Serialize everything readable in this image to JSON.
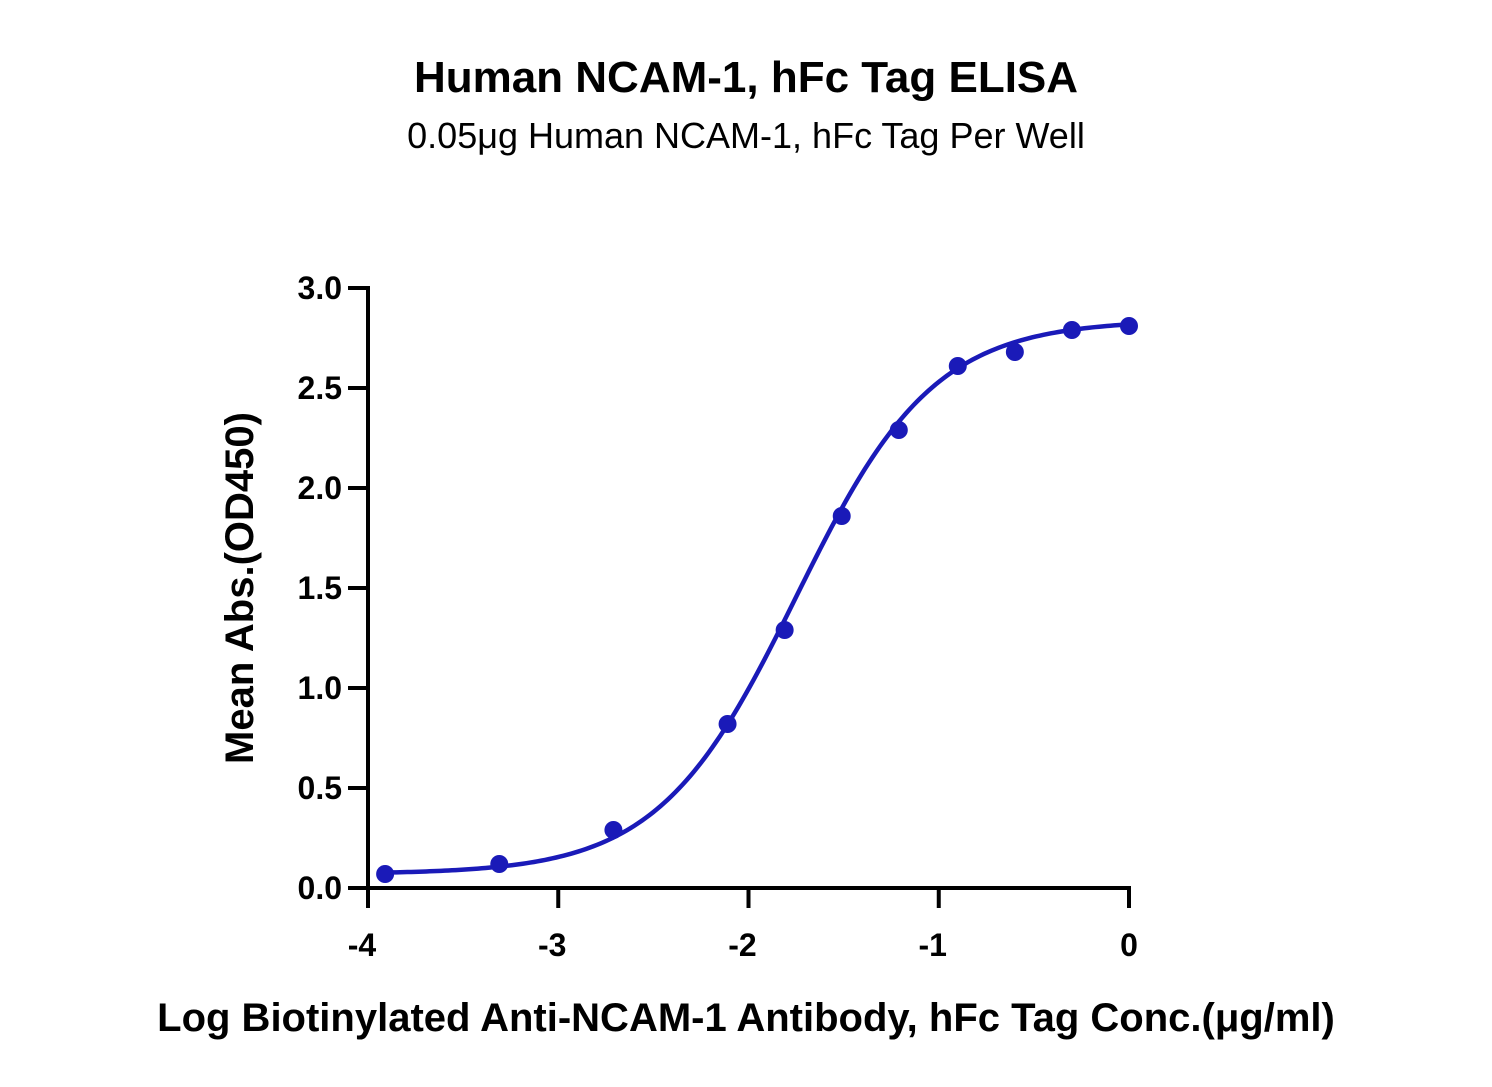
{
  "chart_data": {
    "type": "scatter",
    "title": "Human NCAM-1, hFc Tag ELISA",
    "subtitle": "0.05μg Human NCAM-1, hFc Tag Per Well",
    "xlabel": "Log Biotinylated Anti-NCAM-1 Antibody, hFc Tag Conc.(μg/ml)",
    "ylabel": "Mean Abs.(OD450)",
    "xlim": [
      -4,
      0
    ],
    "ylim": [
      0,
      3.0
    ],
    "x_ticks": [
      "-4",
      "-3",
      "-2",
      "-1",
      "0"
    ],
    "y_ticks": [
      "0.0",
      "0.5",
      "1.0",
      "1.5",
      "2.0",
      "2.5",
      "3.0"
    ],
    "grid": false,
    "legend": "none",
    "series": [
      {
        "color": "#1a1ab8",
        "x": [
          -3.91,
          -3.31,
          -2.71,
          -2.11,
          -1.81,
          -1.51,
          -1.21,
          -0.9,
          -0.6,
          -0.3,
          0.0
        ],
        "y": [
          0.07,
          0.12,
          0.29,
          0.82,
          1.29,
          1.86,
          2.29,
          2.61,
          2.68,
          2.79,
          2.81
        ]
      }
    ],
    "fit_curve": {
      "model": "4PL",
      "bottom": 0.07,
      "top": 2.84,
      "logEC50": -1.75,
      "hill": 1.2
    }
  }
}
